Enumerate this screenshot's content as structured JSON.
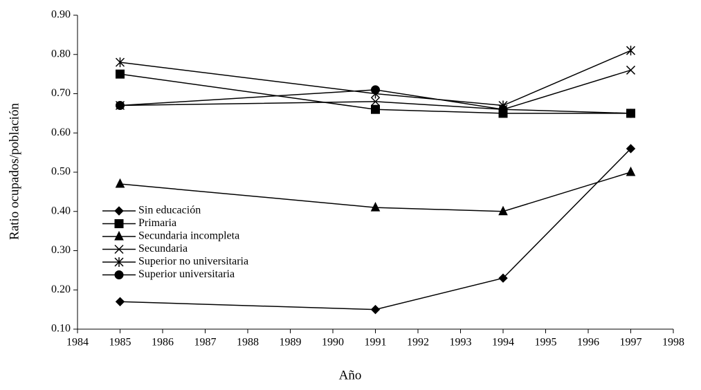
{
  "chart_data": {
    "type": "line",
    "x_label": "Año",
    "y_label": "Ratio ocupados/población",
    "x": [
      1985,
      1991,
      1994,
      1997
    ],
    "series": [
      {
        "name": "Sin educación",
        "color": "#000000",
        "marker": "diamond",
        "values": [
          0.17,
          0.15,
          0.23,
          0.56
        ]
      },
      {
        "name": "Primaria",
        "color": "#000000",
        "marker": "square",
        "values": [
          0.75,
          0.66,
          0.65,
          0.65
        ]
      },
      {
        "name": "Secundaria incompleta",
        "color": "#000000",
        "marker": "triangle",
        "values": [
          0.47,
          0.41,
          0.4,
          0.5
        ]
      },
      {
        "name": "Secundaria",
        "color": "#000000",
        "marker": "x",
        "values": [
          0.67,
          0.68,
          0.66,
          0.76
        ]
      },
      {
        "name": "Superior no universitaria",
        "color": "#000000",
        "marker": "asterisk",
        "values": [
          0.78,
          0.7,
          0.67,
          0.81
        ]
      },
      {
        "name": "Superior universitaria",
        "color": "#000000",
        "marker": "circle",
        "values": [
          0.67,
          0.71,
          0.66,
          0.65
        ]
      }
    ],
    "xlim": [
      1984,
      1998
    ],
    "xticks": [
      1984,
      1985,
      1986,
      1987,
      1988,
      1989,
      1990,
      1991,
      1992,
      1993,
      1994,
      1995,
      1996,
      1997,
      1998
    ],
    "ylim": [
      0.1,
      0.9
    ],
    "yticks": [
      {
        "value": 0.1,
        "label": "0.10"
      },
      {
        "value": 0.2,
        "label": "0.20"
      },
      {
        "value": 0.3,
        "label": "0.30"
      },
      {
        "value": 0.4,
        "label": "0.40"
      },
      {
        "value": 0.5,
        "label": "0.50"
      },
      {
        "value": 0.6,
        "label": "0.60"
      },
      {
        "value": 0.7,
        "label": "0.70"
      },
      {
        "value": 0.8,
        "label": "0.80"
      },
      {
        "value": 0.9,
        "label": "0.90"
      }
    ],
    "grid": false,
    "legend": "lower left"
  }
}
